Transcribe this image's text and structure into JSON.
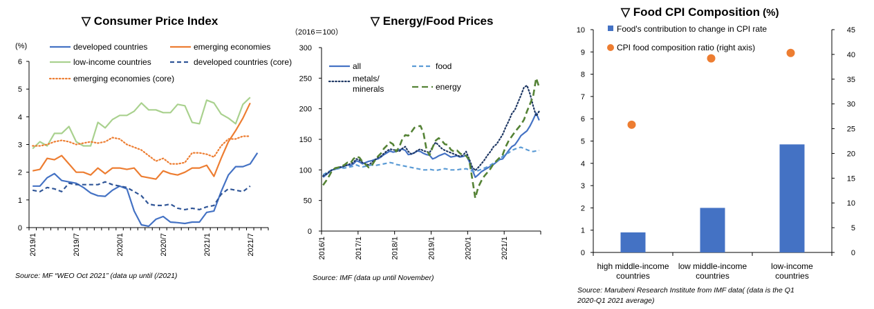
{
  "panels": {
    "cpi": {
      "title": "▽ Consumer Price Index",
      "unit": "(%)",
      "source": "Source: MF “WEO Oct 2021” (data up until (/2021)"
    },
    "energy": {
      "title": "▽ Energy/Food Prices",
      "unit": "（2016＝100）",
      "source": "Source: IMF (data up until November)"
    },
    "food": {
      "title": "▽ Food CPI Composition",
      "unit": " (%)",
      "source": "Source: Marubeni Research Institute from IMF data( (data is the Q1 2020-Q1 2021 average)"
    }
  },
  "chart_data": [
    {
      "type": "line",
      "title": "▽ Consumer Price Index",
      "ylabel": "(%)",
      "ylim": [
        0,
        6
      ],
      "yticks": [
        0,
        1,
        2,
        3,
        4,
        5,
        6
      ],
      "x_ticks": [
        "2019/1",
        "2019/7",
        "2020/1",
        "2020/7",
        "2021/1",
        "2021/7"
      ],
      "x_range": [
        "2019/1",
        "2021/9"
      ],
      "legend": "top",
      "grid": false,
      "series": [
        {
          "name": "developed countries",
          "color": "#4472C4",
          "dash": "solid",
          "values": [
            1.5,
            1.5,
            1.8,
            1.95,
            1.7,
            1.65,
            1.6,
            1.45,
            1.25,
            1.15,
            1.13,
            1.35,
            1.5,
            1.4,
            0.6,
            0.1,
            0.05,
            0.3,
            0.4,
            0.2,
            0.18,
            0.15,
            0.2,
            0.2,
            0.55,
            0.6,
            1.3,
            1.9,
            2.2,
            2.2,
            2.3,
            2.7
          ]
        },
        {
          "name": "emerging economies",
          "color": "#ED7D31",
          "dash": "solid",
          "values": [
            2.05,
            2.1,
            2.5,
            2.45,
            2.6,
            2.3,
            2.0,
            2.0,
            1.9,
            2.15,
            1.95,
            2.15,
            2.15,
            2.1,
            2.15,
            1.85,
            1.8,
            1.75,
            2.05,
            1.95,
            1.9,
            2.0,
            2.15,
            2.15,
            2.25,
            1.85,
            2.5,
            3.1,
            3.5,
            3.95,
            4.5
          ]
        },
        {
          "name": "low-income countries",
          "color": "#A9D18E",
          "dash": "solid",
          "values": [
            2.85,
            3.1,
            2.95,
            3.4,
            3.4,
            3.65,
            3.1,
            2.95,
            2.95,
            3.8,
            3.6,
            3.9,
            4.05,
            4.05,
            4.2,
            4.5,
            4.25,
            4.25,
            4.15,
            4.15,
            4.45,
            4.4,
            3.8,
            3.75,
            4.6,
            4.5,
            4.1,
            3.95,
            3.75,
            4.45,
            4.7
          ]
        },
        {
          "name": "developed countries (core)",
          "color": "#2F5597",
          "dash": "dashed",
          "values": [
            1.35,
            1.3,
            1.45,
            1.4,
            1.3,
            1.6,
            1.55,
            1.55,
            1.55,
            1.55,
            1.65,
            1.55,
            1.5,
            1.45,
            1.3,
            1.15,
            0.85,
            0.8,
            0.8,
            0.85,
            0.7,
            0.65,
            0.7,
            0.65,
            0.75,
            0.8,
            1.2,
            1.4,
            1.35,
            1.3,
            1.5
          ]
        },
        {
          "name": "emerging economies (core)",
          "color": "#ED7D31",
          "dash": "dotted",
          "values": [
            2.95,
            2.95,
            3.0,
            3.1,
            3.15,
            3.1,
            3.0,
            3.05,
            3.1,
            3.05,
            3.1,
            3.25,
            3.2,
            3.0,
            2.9,
            2.8,
            2.6,
            2.4,
            2.5,
            2.3,
            2.3,
            2.35,
            2.7,
            2.7,
            2.65,
            2.55,
            2.95,
            3.2,
            3.2,
            3.3,
            3.3
          ]
        }
      ]
    },
    {
      "type": "line",
      "title": "▽ Energy/Food Prices",
      "ylabel": "（2016＝100）",
      "ylim": [
        0,
        300
      ],
      "yticks": [
        0,
        50,
        100,
        150,
        200,
        250,
        300
      ],
      "x_ticks": [
        "2016/1",
        "2017/1",
        "2018/1",
        "2019/1",
        "2020/1",
        "2021/1"
      ],
      "x_range": [
        "2016/1",
        "2021/11"
      ],
      "legend": "top",
      "grid": false,
      "series": [
        {
          "name": "all",
          "color": "#4472C4",
          "dash": "solid",
          "values": [
            88,
            92,
            96,
            100,
            101,
            103,
            104,
            106,
            108,
            107,
            110,
            115,
            113,
            110,
            112,
            114,
            115,
            117,
            118,
            121,
            125,
            128,
            131,
            129,
            130,
            133,
            134,
            132,
            125,
            126,
            128,
            131,
            130,
            127,
            125,
            124,
            118,
            120,
            123,
            125,
            127,
            124,
            121,
            122,
            123,
            121,
            122,
            124,
            114,
            101,
            88,
            92,
            97,
            100,
            103,
            106,
            109,
            113,
            117,
            118,
            125,
            132,
            138,
            141,
            148,
            156,
            160,
            164,
            172,
            182,
            193,
            181
          ]
        },
        {
          "name": "food",
          "color": "#5B9BD5",
          "dash": "dashed",
          "values": [
            92,
            95,
            98,
            100,
            101,
            102,
            103,
            103,
            104,
            105,
            106,
            108,
            106,
            105,
            106,
            107,
            108,
            107,
            108,
            109,
            110,
            111,
            112,
            111,
            109,
            108,
            107,
            106,
            105,
            104,
            103,
            102,
            101,
            100,
            100,
            101,
            100,
            99,
            100,
            101,
            102,
            101,
            100,
            100,
            100,
            101,
            101,
            102,
            100,
            98,
            97,
            99,
            101,
            103,
            105,
            108,
            111,
            114,
            118,
            122,
            126,
            128,
            132,
            134,
            136,
            137,
            135,
            133,
            131,
            130,
            131,
            132
          ]
        },
        {
          "name": "metals/ minerals",
          "color": "#1F3864",
          "dash": "dotted",
          "values": [
            90,
            93,
            97,
            100,
            102,
            104,
            105,
            106,
            108,
            110,
            112,
            118,
            116,
            112,
            110,
            108,
            112,
            116,
            120,
            122,
            127,
            131,
            134,
            133,
            132,
            130,
            135,
            138,
            130,
            126,
            128,
            132,
            134,
            131,
            130,
            128,
            138,
            145,
            140,
            135,
            132,
            130,
            128,
            126,
            124,
            122,
            124,
            130,
            118,
            105,
            99,
            104,
            110,
            116,
            124,
            130,
            138,
            142,
            150,
            158,
            170,
            180,
            192,
            198,
            210,
            222,
            235,
            238,
            224,
            205,
            188,
            196
          ]
        },
        {
          "name": "energy",
          "color": "#548235",
          "dash": "dashed",
          "values": [
            75,
            82,
            90,
            99,
            103,
            104,
            106,
            108,
            112,
            111,
            118,
            122,
            120,
            113,
            109,
            104,
            107,
            115,
            122,
            127,
            135,
            140,
            145,
            142,
            130,
            137,
            150,
            157,
            156,
            162,
            169,
            171,
            172,
            160,
            133,
            124,
            137,
            148,
            152,
            148,
            142,
            141,
            133,
            130,
            132,
            127,
            124,
            123,
            117,
            86,
            54,
            72,
            82,
            90,
            96,
            102,
            110,
            115,
            120,
            125,
            138,
            148,
            155,
            162,
            168,
            174,
            182,
            196,
            208,
            220,
            250,
            235
          ]
        }
      ]
    },
    {
      "type": "bar",
      "title": "▽ Food CPI Composition",
      "ylabel": " (%)",
      "categories": [
        "high middle-income countries",
        "low middle-income countries",
        "low-income countries"
      ],
      "ylim": [
        0,
        10
      ],
      "y2lim": [
        0,
        45
      ],
      "yticks": [
        0,
        1,
        2,
        3,
        4,
        5,
        6,
        7,
        8,
        9,
        10
      ],
      "y2ticks": [
        0,
        5,
        10,
        15,
        20,
        25,
        30,
        35,
        40,
        45
      ],
      "legend": "top-left",
      "grid": false,
      "series": [
        {
          "name": "Food's contribution to change in CPI rate",
          "type": "bar",
          "axis": "left",
          "color": "#4472C4",
          "values": [
            0.9,
            2.0,
            4.85
          ]
        },
        {
          "name": "CPI food composition ratio (right axis)",
          "type": "scatter",
          "axis": "right",
          "color": "#ED7D31",
          "values": [
            25.8,
            39.2,
            40.3
          ]
        }
      ]
    }
  ]
}
